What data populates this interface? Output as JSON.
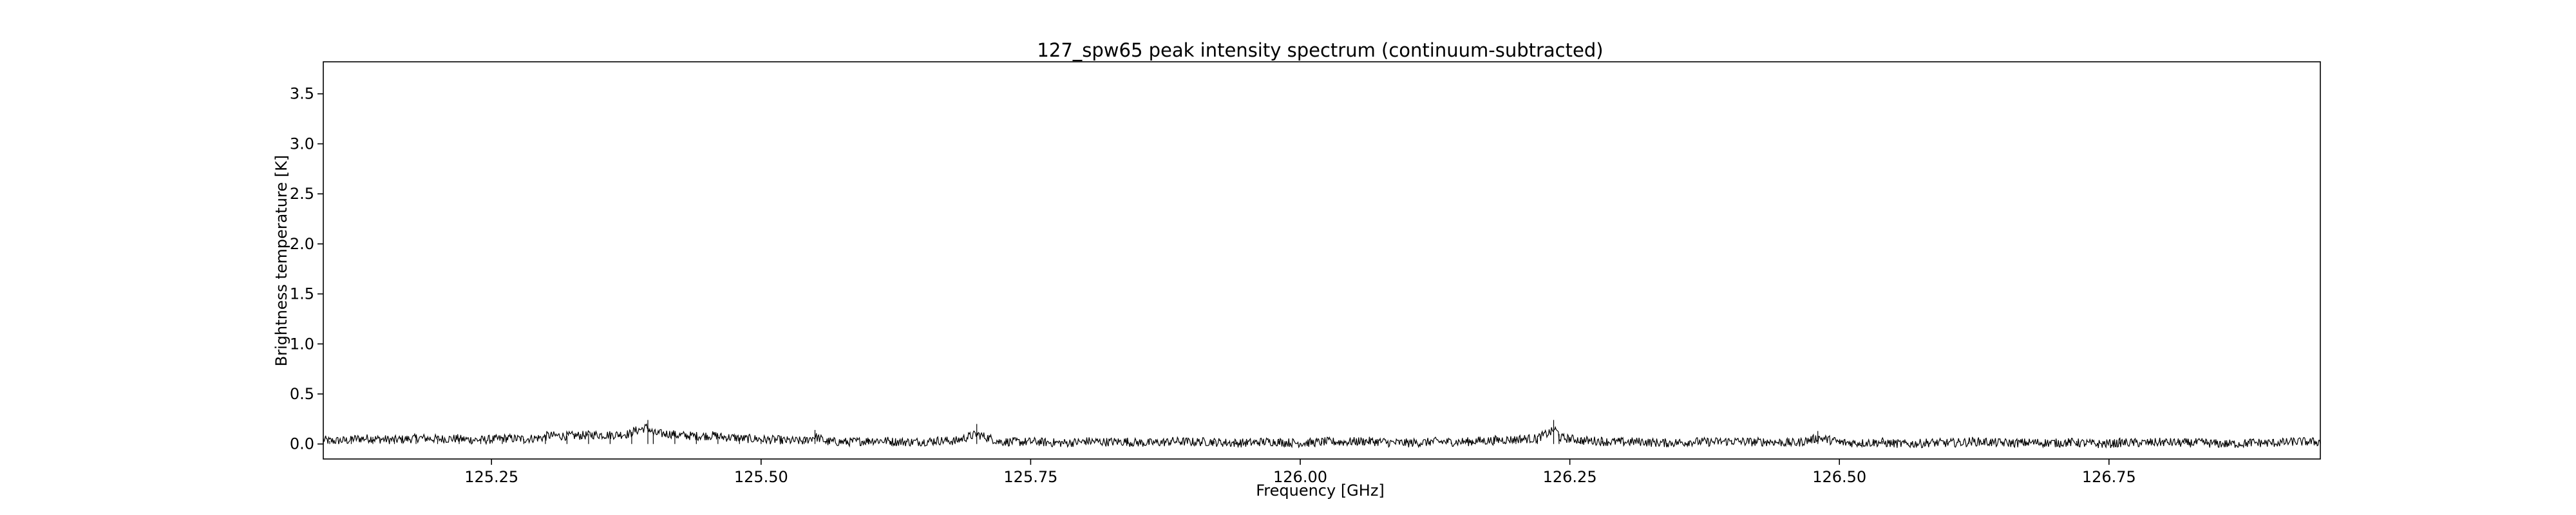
{
  "chart_data": {
    "type": "line",
    "title": "127_spw65 peak intensity spectrum (continuum-subtracted)",
    "xlabel": "Frequency [GHz]",
    "ylabel": "Brightness temperature [K]",
    "xlim": [
      125.094,
      126.946
    ],
    "ylim": [
      -0.15,
      3.82
    ],
    "x_ticks": [
      125.25,
      125.5,
      125.75,
      126.0,
      126.25,
      126.5,
      126.75
    ],
    "x_tick_labels": [
      "125.25",
      "125.50",
      "125.75",
      "126.00",
      "126.25",
      "126.50",
      "126.75"
    ],
    "y_ticks": [
      0.0,
      0.5,
      1.0,
      1.5,
      2.0,
      2.5,
      3.0,
      3.5
    ],
    "y_tick_labels": [
      "0.0",
      "0.5",
      "1.0",
      "1.5",
      "2.0",
      "2.5",
      "3.0",
      "3.5"
    ],
    "grid": false,
    "series": [
      {
        "color": "#000000",
        "x": [
          125.094,
          125.1,
          125.12,
          125.14,
          125.16,
          125.18,
          125.2,
          125.22,
          125.24,
          125.26,
          125.28,
          125.3,
          125.32,
          125.34,
          125.36,
          125.38,
          125.395,
          125.4,
          125.42,
          125.44,
          125.46,
          125.48,
          125.5,
          125.52,
          125.54,
          125.55,
          125.56,
          125.58,
          125.6,
          125.62,
          125.64,
          125.66,
          125.68,
          125.7,
          125.72,
          125.74,
          125.76,
          125.78,
          125.8,
          125.82,
          125.84,
          125.86,
          125.88,
          125.9,
          125.92,
          125.94,
          125.96,
          125.98,
          126.0,
          126.02,
          126.04,
          126.06,
          126.08,
          126.1,
          126.12,
          126.14,
          126.16,
          126.18,
          126.2,
          126.22,
          126.235,
          126.24,
          126.26,
          126.28,
          126.3,
          126.32,
          126.34,
          126.36,
          126.38,
          126.4,
          126.42,
          126.44,
          126.46,
          126.48,
          126.5,
          126.52,
          126.54,
          126.56,
          126.58,
          126.6,
          126.62,
          126.64,
          126.66,
          126.68,
          126.7,
          126.72,
          126.74,
          126.76,
          126.78,
          126.8,
          126.82,
          126.84,
          126.86,
          126.88,
          126.9,
          126.92,
          126.946
        ],
        "y": [
          0.06,
          0.03,
          0.05,
          0.07,
          0.04,
          0.08,
          0.05,
          0.06,
          0.04,
          0.07,
          0.05,
          0.09,
          0.08,
          0.1,
          0.09,
          0.12,
          0.24,
          0.11,
          0.1,
          0.08,
          0.09,
          0.06,
          0.05,
          0.04,
          0.03,
          0.14,
          0.03,
          0.02,
          0.05,
          0.03,
          0.02,
          0.04,
          0.03,
          0.2,
          0.03,
          0.02,
          0.03,
          0.01,
          0.04,
          0.02,
          0.03,
          0.01,
          0.04,
          0.02,
          0.03,
          0.01,
          0.02,
          0.03,
          0.01,
          0.03,
          0.02,
          0.04,
          0.02,
          0.01,
          0.03,
          0.02,
          0.03,
          0.04,
          0.05,
          0.06,
          0.24,
          0.1,
          0.04,
          0.03,
          0.02,
          0.03,
          0.01,
          0.03,
          0.02,
          0.04,
          0.02,
          0.03,
          0.01,
          0.13,
          0.02,
          0.01,
          0.03,
          0.0,
          0.02,
          0.01,
          0.03,
          0.02,
          0.01,
          0.02,
          0.01,
          0.03,
          0.0,
          0.02,
          0.01,
          0.03,
          0.01,
          0.02,
          0.0,
          0.02,
          0.01,
          0.03,
          0.02
        ]
      }
    ]
  }
}
